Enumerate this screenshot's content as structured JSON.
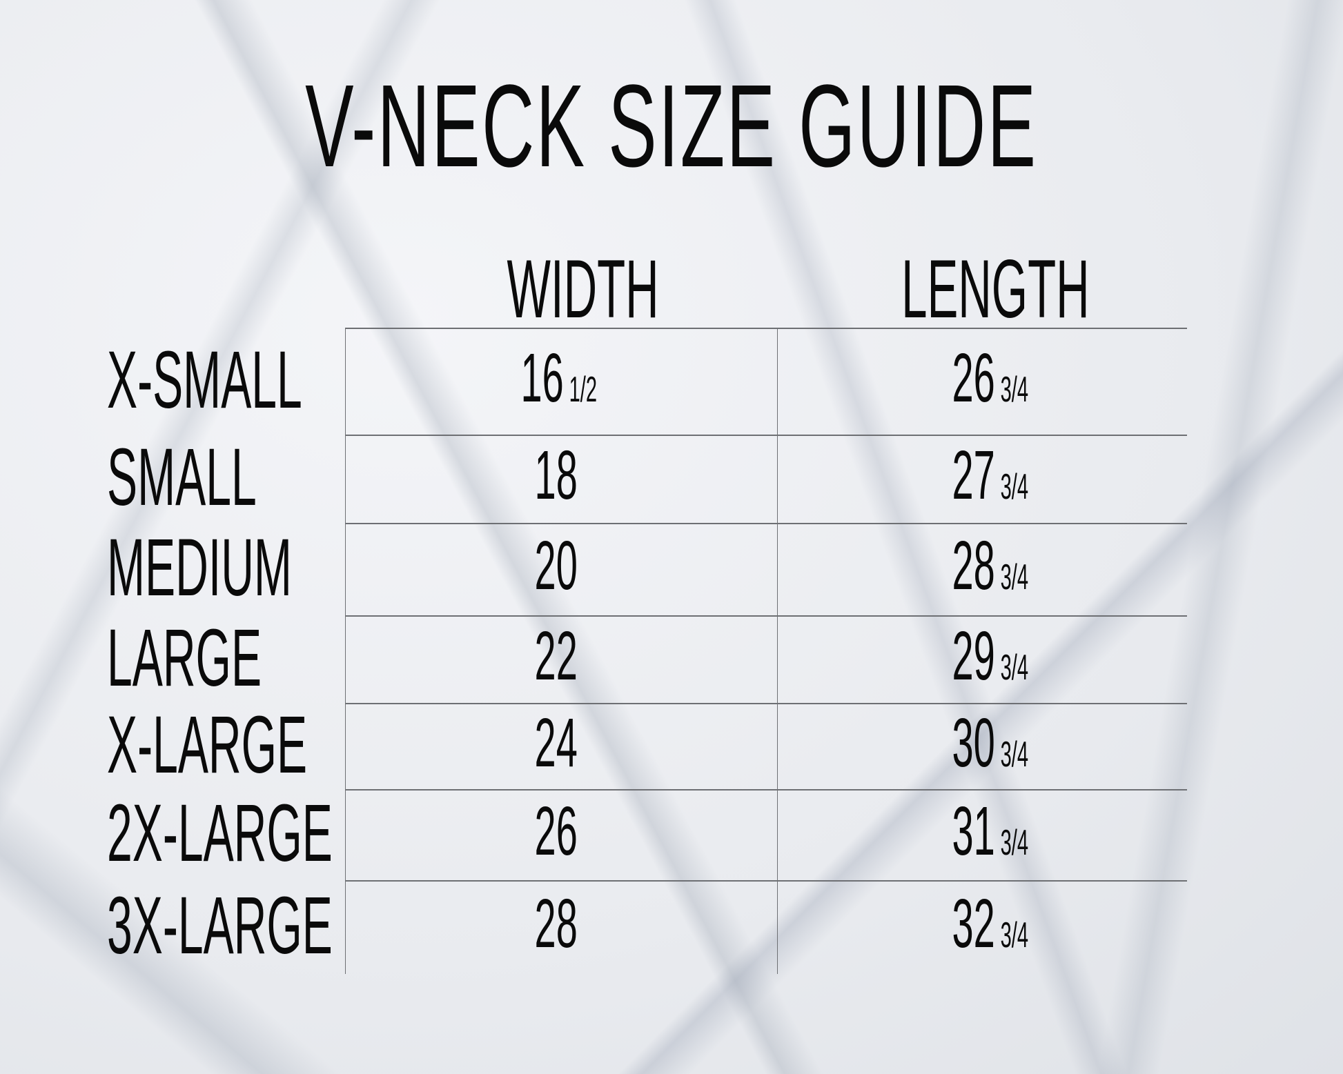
{
  "title": "V-NECK SIZE GUIDE",
  "columns": {
    "width": "WIDTH",
    "length": "LENGTH"
  },
  "rows": [
    {
      "size": "X-SMALL",
      "width": "16",
      "width_frac": "1/2",
      "length": "26",
      "length_frac": "3/4"
    },
    {
      "size": "SMALL",
      "width": "18",
      "width_frac": "",
      "length": "27",
      "length_frac": "3/4"
    },
    {
      "size": "MEDIUM",
      "width": "20",
      "width_frac": "",
      "length": "28",
      "length_frac": "3/4"
    },
    {
      "size": "LARGE",
      "width": "22",
      "width_frac": "",
      "length": "29",
      "length_frac": "3/4"
    },
    {
      "size": "X-LARGE",
      "width": "24",
      "width_frac": "",
      "length": "30",
      "length_frac": "3/4"
    },
    {
      "size": "2X-LARGE",
      "width": "26",
      "width_frac": "",
      "length": "31",
      "length_frac": "3/4"
    },
    {
      "size": "3X-LARGE",
      "width": "28",
      "width_frac": "",
      "length": "32",
      "length_frac": "3/4"
    }
  ],
  "colors": {
    "text": "#0a0a0a",
    "grid": "#6d6f73",
    "background": "#eceef2"
  }
}
